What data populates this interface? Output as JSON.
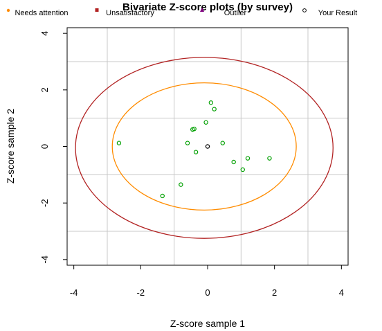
{
  "chart_data": {
    "type": "scatter",
    "title": "Bivariate Z-score plots (by survey)",
    "xlabel": "Z-score sample 1",
    "ylabel": "Z-score sample 2",
    "xlim": [
      -4.2,
      4.2
    ],
    "ylim": [
      -4.2,
      4.2
    ],
    "xticks": [
      -4,
      -2,
      0,
      2,
      4
    ],
    "yticks": [
      -4,
      -2,
      0,
      2,
      4
    ],
    "xtick_labels": [
      "-4",
      "-2",
      "0",
      "2",
      "4"
    ],
    "ytick_labels": [
      "-4",
      "-2",
      "0",
      "2",
      "4"
    ],
    "grid": true,
    "grid_lines": [
      -3,
      -1,
      1,
      3
    ],
    "legend": {
      "placement": "top",
      "entries": [
        {
          "label": "Needs attention",
          "marker": "dot",
          "color": "#ff8c00"
        },
        {
          "label": "Unsatisfactory",
          "marker": "square",
          "color": "#b22222"
        },
        {
          "label": "Outlier",
          "marker": "triangle",
          "color": "#800080"
        },
        {
          "label": "Your Result",
          "marker": "circle-open",
          "color": "#000000"
        }
      ]
    },
    "ellipses": [
      {
        "center": [
          -0.1,
          0.0
        ],
        "rx": 2.75,
        "ry": 2.25,
        "color": "#ff8c00"
      },
      {
        "center": [
          -0.1,
          -0.05
        ],
        "rx": 3.85,
        "ry": 3.2,
        "color": "#b22222"
      }
    ],
    "series": [
      {
        "marker": "circle-open",
        "color": "#00a000",
        "points": [
          [
            -2.65,
            0.12
          ],
          [
            0.1,
            1.55
          ],
          [
            0.2,
            1.32
          ],
          [
            -0.05,
            0.85
          ],
          [
            -0.4,
            0.62
          ],
          [
            -0.45,
            0.6
          ],
          [
            -0.6,
            0.12
          ],
          [
            -0.35,
            -0.2
          ],
          [
            0.45,
            0.12
          ],
          [
            0.78,
            -0.55
          ],
          [
            1.2,
            -0.42
          ],
          [
            1.05,
            -0.82
          ],
          [
            1.85,
            -0.42
          ],
          [
            -0.8,
            -1.35
          ],
          [
            -1.35,
            -1.75
          ]
        ]
      },
      {
        "name": "Your Result",
        "marker": "circle-open",
        "color": "#000000",
        "points": [
          [
            0.0,
            0.0
          ]
        ]
      }
    ]
  }
}
